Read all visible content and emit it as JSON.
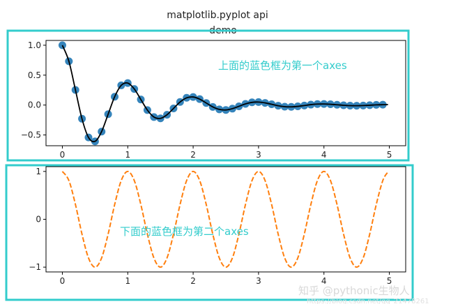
{
  "chart_data": [
    {
      "type": "scatter+line",
      "title": "matplotlib.pyplot api\ndemo",
      "title_lines": [
        "matplotlib.pyplot api",
        "demo"
      ],
      "annotation": "上面的蓝色框为第一个axes",
      "x": [
        0,
        0.1,
        0.2,
        0.3,
        0.4,
        0.5,
        0.6,
        0.7,
        0.8,
        0.9,
        1.0,
        1.1,
        1.2,
        1.3,
        1.4,
        1.5,
        1.6,
        1.7,
        1.8,
        1.9,
        2.0,
        2.1,
        2.2,
        2.3,
        2.4,
        2.5,
        2.6,
        2.7,
        2.8,
        2.9,
        3.0,
        3.1,
        3.2,
        3.3,
        3.4,
        3.5,
        3.6,
        3.7,
        3.8,
        3.9,
        4.0,
        4.1,
        4.2,
        4.3,
        4.4,
        4.5,
        4.6,
        4.7,
        4.8,
        4.9
      ],
      "series": [
        {
          "kind": "scatter",
          "color": "#1f77b4",
          "values": [
            1.0,
            0.732,
            0.253,
            -0.229,
            -0.542,
            -0.607,
            -0.444,
            -0.153,
            0.139,
            0.329,
            0.368,
            0.269,
            0.093,
            -0.084,
            -0.2,
            -0.223,
            -0.163,
            -0.056,
            0.051,
            0.121,
            0.135,
            0.099,
            0.034,
            -0.031,
            -0.073,
            -0.082,
            -0.06,
            -0.021,
            0.019,
            0.045,
            0.05,
            0.036,
            0.013,
            -0.011,
            -0.027,
            -0.03,
            -0.022,
            -0.008,
            0.007,
            0.016,
            0.018,
            0.013,
            0.005,
            -0.004,
            -0.01,
            -0.011,
            -0.008,
            -0.003,
            0.003,
            0.006
          ]
        },
        {
          "kind": "line",
          "color": "#000000",
          "values": [
            1.0,
            0.732,
            0.253,
            -0.229,
            -0.542,
            -0.607,
            -0.444,
            -0.153,
            0.139,
            0.329,
            0.368,
            0.269,
            0.093,
            -0.084,
            -0.2,
            -0.223,
            -0.163,
            -0.056,
            0.051,
            0.121,
            0.135,
            0.099,
            0.034,
            -0.031,
            -0.073,
            -0.082,
            -0.06,
            -0.021,
            0.019,
            0.045,
            0.05,
            0.036,
            0.013,
            -0.011,
            -0.027,
            -0.03,
            -0.022,
            -0.008,
            0.007,
            0.016,
            0.018,
            0.013,
            0.005,
            -0.004,
            -0.01,
            -0.011,
            -0.008,
            -0.003,
            0.003,
            0.006
          ]
        }
      ],
      "xlim": [
        -0.25,
        5.25
      ],
      "ylim": [
        -0.68,
        1.08
      ],
      "xticks": [
        "0",
        "1",
        "2",
        "3",
        "4",
        "5"
      ],
      "yticks": [
        "1.0",
        "0.5",
        "0.0",
        "−0.5"
      ],
      "ytick_values": [
        1.0,
        0.5,
        0.0,
        -0.5
      ],
      "frame_color": "#33cccc"
    },
    {
      "type": "line",
      "annotation": "下面的蓝色框为第二个axes",
      "x": [
        0,
        0.1,
        0.2,
        0.3,
        0.4,
        0.5,
        0.6,
        0.7,
        0.8,
        0.9,
        1.0,
        1.1,
        1.2,
        1.3,
        1.4,
        1.5,
        1.6,
        1.7,
        1.8,
        1.9,
        2.0,
        2.1,
        2.2,
        2.3,
        2.4,
        2.5,
        2.6,
        2.7,
        2.8,
        2.9,
        3.0,
        3.1,
        3.2,
        3.3,
        3.4,
        3.5,
        3.6,
        3.7,
        3.8,
        3.9,
        4.0,
        4.1,
        4.2,
        4.3,
        4.4,
        4.5,
        4.6,
        4.7,
        4.8,
        4.9,
        4.98
      ],
      "series": [
        {
          "kind": "line",
          "style": "dashed",
          "color": "#ff7f0e",
          "values": [
            1,
            0.809,
            0.309,
            -0.309,
            -0.809,
            -1,
            -0.809,
            -0.309,
            0.309,
            0.809,
            1,
            0.809,
            0.309,
            -0.309,
            -0.809,
            -1,
            -0.809,
            -0.309,
            0.309,
            0.809,
            1,
            0.809,
            0.309,
            -0.309,
            -0.809,
            -1,
            -0.809,
            -0.309,
            0.309,
            0.809,
            1,
            0.809,
            0.309,
            -0.309,
            -0.809,
            -1,
            -0.809,
            -0.309,
            0.309,
            0.809,
            1,
            0.809,
            0.309,
            -0.309,
            -0.809,
            -1,
            -0.809,
            -0.309,
            0.309,
            0.809,
            0.992
          ]
        }
      ],
      "xlim": [
        -0.25,
        5.25
      ],
      "ylim": [
        -1.1,
        1.1
      ],
      "xticks": [
        "0",
        "1",
        "2",
        "3",
        "4",
        "5"
      ],
      "yticks": [
        "1",
        "0",
        "−1"
      ],
      "ytick_values": [
        1,
        0,
        -1
      ],
      "frame_color": "#33cccc"
    }
  ],
  "watermark": {
    "line1": "知乎 @pythonic生物人",
    "line2": "https://blog.csdn.net/qq_21478261"
  }
}
